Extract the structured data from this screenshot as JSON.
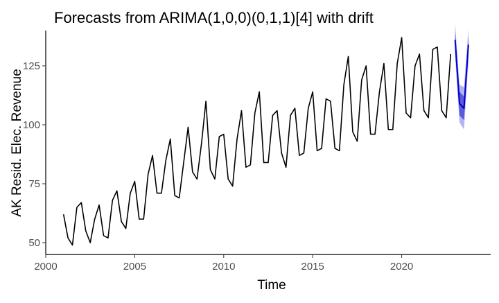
{
  "chart_data": {
    "type": "line",
    "title": "Forecasts from ARIMA(1,0,0)(0,1,1)[4] with drift",
    "xlabel": "Time",
    "ylabel": "AK Resid. Elec. Revenue",
    "xlim": [
      2000,
      2025
    ],
    "ylim": [
      45,
      140
    ],
    "xticks": [
      2000,
      2005,
      2010,
      2015,
      2020
    ],
    "yticks": [
      50,
      75,
      100,
      125
    ],
    "grid": false,
    "colors": {
      "history": "#000000",
      "forecast": "#0000cc",
      "pi80": "#5b5bdc",
      "pi95": "#b4b4ee"
    },
    "history": {
      "start": 2001.0,
      "frequency": 4,
      "values": [
        62,
        52,
        49,
        65,
        67,
        55,
        50,
        60,
        66,
        53,
        52,
        68,
        72,
        59,
        56,
        71,
        76,
        60,
        60,
        79,
        87,
        71,
        71,
        85,
        94,
        70,
        69,
        84,
        99,
        80,
        77,
        92,
        110,
        81,
        77,
        95,
        96,
        77,
        74,
        94,
        106,
        82,
        83,
        105,
        114,
        84,
        84,
        104,
        106,
        88,
        82,
        104,
        107,
        87,
        88,
        107,
        114,
        89,
        90,
        111,
        110,
        90,
        89,
        117,
        129,
        97,
        93,
        119,
        125,
        96,
        96,
        114,
        126,
        98,
        98,
        126,
        137,
        105,
        103,
        125,
        130,
        106,
        103,
        132,
        133,
        106,
        103,
        130
      ]
    },
    "forecast": {
      "start": 2023.0,
      "frequency": 4,
      "mean": [
        136,
        109,
        107,
        134
      ],
      "lo80": [
        132,
        104,
        102,
        130
      ],
      "hi80": [
        140,
        114,
        112,
        138
      ],
      "lo95": [
        129,
        101,
        98,
        127
      ],
      "hi95": [
        143,
        117,
        116,
        141
      ]
    }
  }
}
